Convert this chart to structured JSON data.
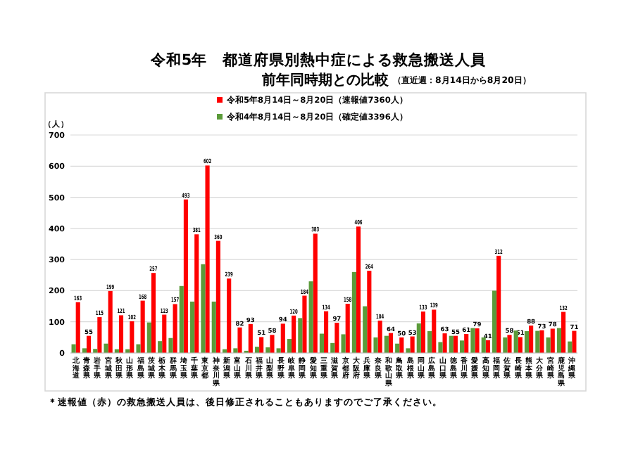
{
  "chart_data": {
    "type": "bar",
    "title": "令和5年　都道府県別熱中症による救急搬送人員",
    "subtitle": "前年同時期との比較",
    "annotations": [
      "（直近週：8月14日から8月20日）",
      "＊速報値（赤）の救急搬送人員は、後日修正されることもありますのでご了承ください。"
    ],
    "ylabel": "（人）",
    "categories": [
      "北海道",
      "青森県",
      "岩手県",
      "宮城県",
      "秋田県",
      "山形県",
      "福島県",
      "茨城県",
      "栃木県",
      "群馬県",
      "埼玉県",
      "千葉県",
      "東京都",
      "神奈川県",
      "新潟県",
      "富山県",
      "石川県",
      "福井県",
      "山梨県",
      "長野県",
      "岐阜県",
      "静岡県",
      "愛知県",
      "三重県",
      "滋賀県",
      "京都府",
      "大阪府",
      "兵庫県",
      "奈良県",
      "和歌山県",
      "鳥取県",
      "島根県",
      "岡山県",
      "広島県",
      "山口県",
      "徳島県",
      "香川県",
      "愛媛県",
      "高知県",
      "福岡県",
      "佐賀県",
      "長崎県",
      "熊本県",
      "大分県",
      "宮崎県",
      "鹿児島県",
      "沖縄県"
    ],
    "series": [
      {
        "name": "令和5年8月14日～8月20日（速報値7360人）",
        "color": "#ff0000",
        "values": [
          163,
          55,
          115,
          199,
          121,
          102,
          168,
          257,
          123,
          157,
          493,
          381,
          602,
          360,
          239,
          82,
          93,
          51,
          58,
          94,
          120,
          184,
          383,
          134,
          97,
          158,
          406,
          264,
          104,
          64,
          50,
          53,
          133,
          139,
          63,
          55,
          61,
          79,
          41,
          312,
          58,
          51,
          88,
          73,
          78,
          132,
          71
        ],
        "value_labels": [
          "163",
          "55",
          "115",
          "199",
          "121",
          "102",
          "168",
          "257",
          "123",
          "157",
          "493",
          "381",
          "602",
          "360",
          "239",
          "82",
          "93",
          "51",
          "58",
          "94",
          "120",
          "184",
          "383",
          "134",
          "97",
          "158",
          "406",
          "264",
          "104",
          "64",
          "50",
          "53",
          "133",
          "139",
          "63",
          "55",
          "61",
          "79",
          "41",
          "312",
          "58",
          "51",
          "88",
          "73",
          "78",
          "132",
          "71"
        ]
      },
      {
        "name": "令和4年8月14日～8月20日（確定値3396人）",
        "color": "#5b9b3a",
        "values": [
          28,
          15,
          13,
          30,
          12,
          12,
          28,
          98,
          38,
          48,
          215,
          165,
          285,
          165,
          12,
          15,
          7,
          20,
          18,
          15,
          45,
          112,
          230,
          62,
          32,
          60,
          260,
          150,
          50,
          55,
          30,
          15,
          95,
          70,
          35,
          55,
          40,
          80,
          50,
          200,
          50,
          72,
          70,
          71,
          50,
          80,
          37
        ]
      }
    ],
    "ylim": [
      0,
      700
    ],
    "yticks": [
      0,
      100,
      200,
      300,
      400,
      500,
      600,
      700
    ],
    "grid": "y",
    "legend": "top"
  }
}
